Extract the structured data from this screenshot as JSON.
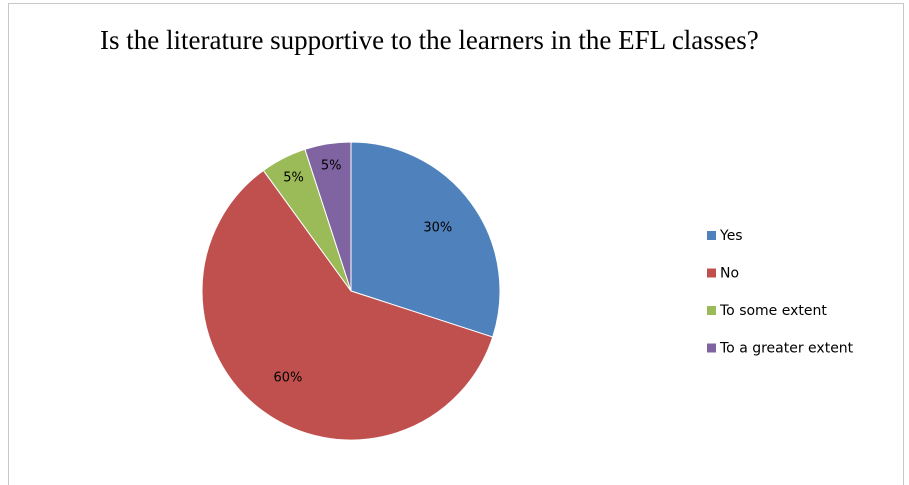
{
  "chart_data": {
    "type": "pie",
    "title": "Is the literature supportive to the learners in the EFL classes?",
    "categories": [
      "Yes",
      "No",
      "To some  extent",
      "To a greater extent"
    ],
    "values": [
      30,
      60,
      5,
      5
    ],
    "value_labels": [
      "30%",
      "60%",
      "5%",
      "5%"
    ],
    "colors": [
      "#4f81bd",
      "#c0504d",
      "#9bbb59",
      "#8064a2"
    ],
    "legend": "right"
  }
}
